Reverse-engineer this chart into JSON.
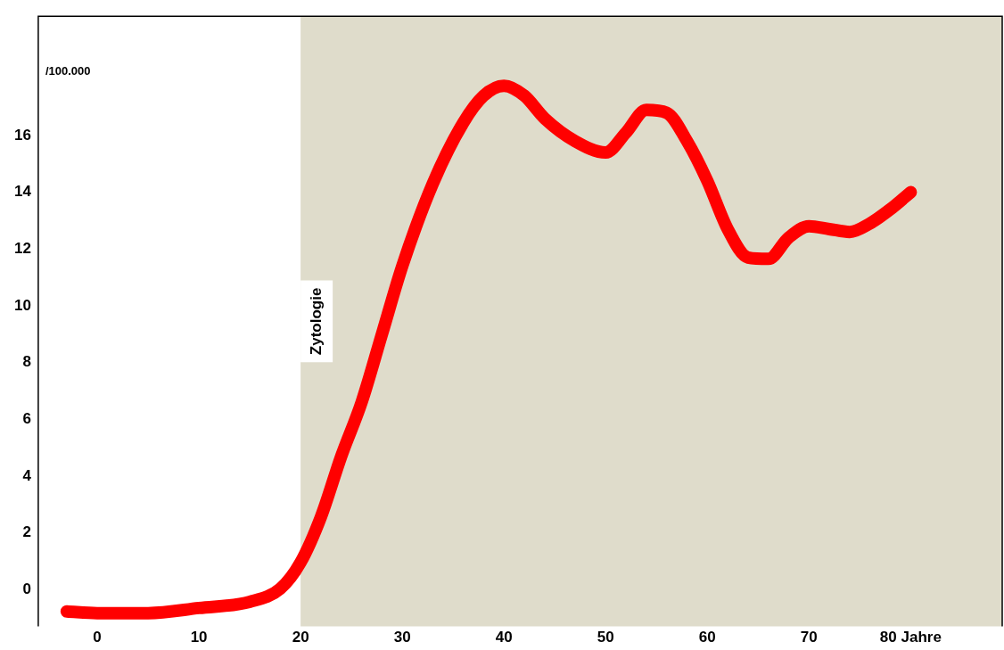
{
  "chart_data": {
    "type": "line",
    "x": [
      -3,
      0,
      5,
      10,
      15,
      18,
      20,
      22,
      24,
      26,
      28,
      30,
      33,
      36,
      38,
      40,
      42,
      44,
      47,
      50,
      52,
      54,
      56,
      58,
      60,
      62,
      64,
      66,
      68,
      70,
      72,
      74,
      76,
      78,
      80
    ],
    "series": [
      {
        "color": "#ff0000",
        "values": [
          -0.77,
          -0.83,
          -0.83,
          -0.65,
          -0.43,
          0.03,
          0.96,
          2.56,
          4.7,
          6.6,
          9.0,
          11.4,
          14.3,
          16.45,
          17.4,
          17.75,
          17.4,
          16.6,
          15.8,
          15.4,
          16.1,
          16.9,
          16.8,
          15.8,
          14.4,
          12.7,
          11.7,
          11.65,
          12.4,
          12.8,
          12.7,
          12.6,
          12.9,
          13.4,
          14.0
        ]
      }
    ],
    "xlim": [
      -5.8,
      89
    ],
    "ylim": [
      -1.3,
      20.2
    ],
    "xticks": [
      0,
      10,
      20,
      30,
      40,
      50,
      60,
      70,
      {
        "value": 80,
        "label": "80 Jahre"
      }
    ],
    "yticks": [
      0,
      2,
      4,
      6,
      8,
      10,
      12,
      14,
      16
    ],
    "ylabel": "/100.000",
    "bands": [
      {
        "axis": "x",
        "from": 20,
        "to": 89,
        "label": "Zytologie",
        "color": "#dfdccb"
      }
    ],
    "grid": false,
    "legend": false,
    "marker": "none",
    "line_style": "solid"
  }
}
